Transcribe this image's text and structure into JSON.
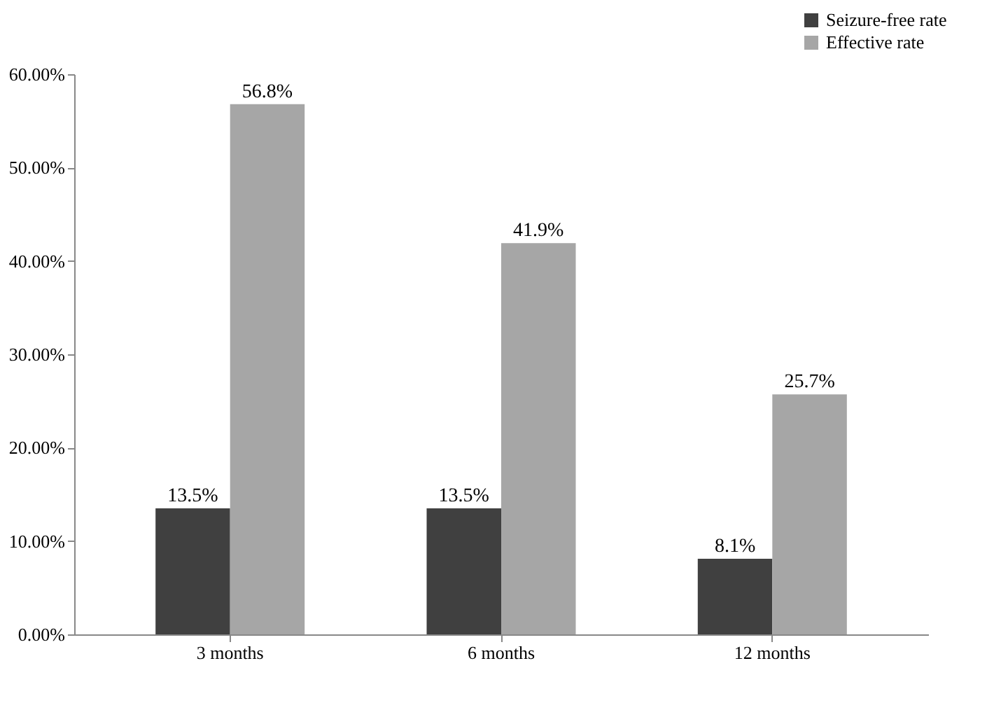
{
  "chart_data": {
    "type": "bar",
    "categories": [
      "3 months",
      "6 months",
      "12 months"
    ],
    "series": [
      {
        "name": "Seizure-free rate",
        "color": "#404040",
        "values": [
          13.5,
          13.5,
          8.1
        ],
        "value_labels": [
          "13.5%",
          "13.5%",
          "8.1%"
        ]
      },
      {
        "name": "Effective rate",
        "color": "#a6a6a6",
        "values": [
          56.8,
          41.9,
          25.7
        ],
        "value_labels": [
          "56.8%",
          "41.9%",
          "25.7%"
        ]
      }
    ],
    "ylim": [
      0,
      60
    ],
    "yticks": [
      {
        "value": 0,
        "label": "0.00%"
      },
      {
        "value": 10,
        "label": "10.00%"
      },
      {
        "value": 20,
        "label": "20.00%"
      },
      {
        "value": 30,
        "label": "30.00%"
      },
      {
        "value": 40,
        "label": "40.00%"
      },
      {
        "value": 50,
        "label": "50.00%"
      },
      {
        "value": 60,
        "label": "60.00%"
      }
    ],
    "grid": false,
    "legend": "top right"
  }
}
